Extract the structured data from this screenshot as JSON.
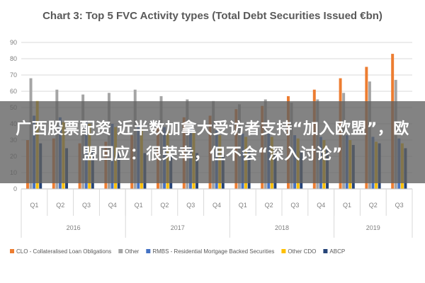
{
  "overlay": {
    "headline": "广西股票配资 近半数加拿大受访者支持“加入欧盟”，欧盟回应：很荣幸，但不会“深入讨论”"
  },
  "chart_data": {
    "type": "bar",
    "title": "Chart 3: Top 5 FVC Activity types (Total Debt Securities Issued €bn)",
    "ylim": [
      0,
      90
    ],
    "yticks": [
      "0",
      "10",
      "20",
      "30",
      "40",
      "50",
      "60",
      "70",
      "80",
      "90"
    ],
    "grid": true,
    "legend_position": "bottom",
    "categories": [
      "Q1",
      "Q2",
      "Q3",
      "Q4",
      "Q1",
      "Q2",
      "Q3",
      "Q4",
      "Q1",
      "Q2",
      "Q3",
      "Q4",
      "Q1",
      "Q2",
      "Q3"
    ],
    "year_groups": [
      {
        "label": "2016",
        "count": 4
      },
      {
        "label": "2017",
        "count": 4
      },
      {
        "label": "2018",
        "count": 4
      },
      {
        "label": "2019",
        "count": 3
      }
    ],
    "series": [
      {
        "name": "CLO - Collateralised Loan Obligations",
        "color": "#ED7D31",
        "values": [
          30,
          31,
          28,
          29,
          33,
          39,
          44,
          45,
          49,
          51,
          57,
          61,
          68,
          75,
          83
        ]
      },
      {
        "name": "Other",
        "color": "#A5A5A5",
        "values": [
          68,
          61,
          58,
          59,
          61,
          57,
          55,
          54,
          52,
          55,
          53,
          55,
          59,
          66,
          67
        ]
      },
      {
        "name": "RMBS - Residential Mortgage Backed Securities",
        "color": "#4472C4",
        "values": [
          45,
          44,
          42,
          40,
          39,
          38,
          37,
          36,
          34,
          34,
          33,
          32,
          33,
          32,
          31
        ]
      },
      {
        "name": "Other CDO",
        "color": "#FFC000",
        "values": [
          54,
          41,
          40,
          38,
          37,
          36,
          35,
          33,
          32,
          32,
          31,
          30,
          30,
          29,
          28
        ]
      },
      {
        "name": "ABCP",
        "color": "#264478",
        "values": [
          28,
          25,
          24,
          23,
          22,
          22,
          22,
          21,
          23,
          22,
          23,
          24,
          27,
          28,
          25
        ]
      }
    ]
  }
}
